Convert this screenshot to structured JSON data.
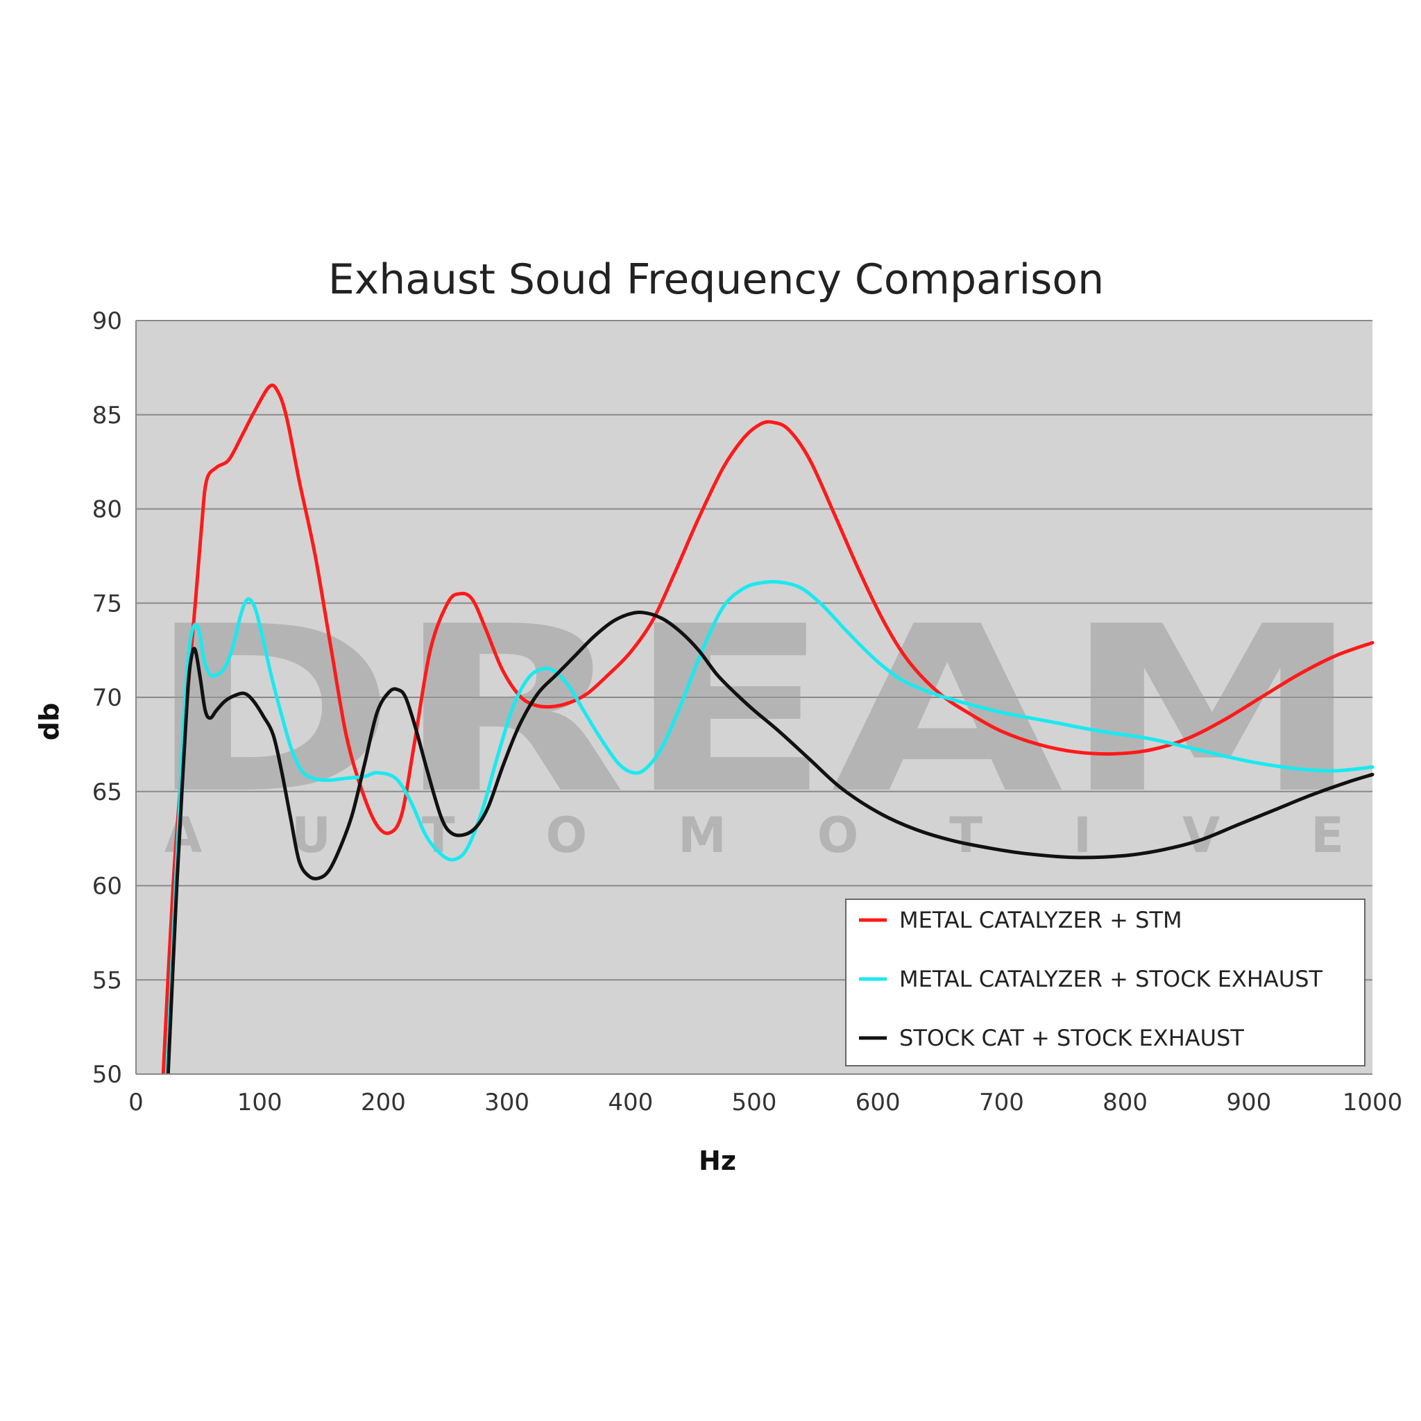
{
  "chart_data": {
    "type": "line",
    "title": "Exhaust Soud Frequency Comparison",
    "xlabel": "Hz",
    "ylabel": "db",
    "xlim": [
      0,
      1000
    ],
    "ylim": [
      50,
      90
    ],
    "x_ticks": [
      0,
      100,
      200,
      300,
      400,
      500,
      600,
      700,
      800,
      900,
      1000
    ],
    "y_ticks": [
      50,
      55,
      60,
      65,
      70,
      75,
      80,
      85,
      90
    ],
    "grid": true,
    "legend_position": "bottom-right",
    "watermark": {
      "main": "DREAM",
      "sub": "AUTOMOTIVE"
    },
    "series": [
      {
        "name": "METAL CATALYZER + STM",
        "color": "#ff1a1a",
        "points": [
          [
            22,
            50
          ],
          [
            30,
            60
          ],
          [
            38,
            67
          ],
          [
            44,
            72
          ],
          [
            48,
            75
          ],
          [
            53,
            79
          ],
          [
            57,
            81.5
          ],
          [
            65,
            82.2
          ],
          [
            75,
            82.6
          ],
          [
            85,
            83.8
          ],
          [
            96,
            85.2
          ],
          [
            108,
            86.5
          ],
          [
            115,
            86.2
          ],
          [
            122,
            84.8
          ],
          [
            132,
            81.5
          ],
          [
            145,
            77.5
          ],
          [
            158,
            72.5
          ],
          [
            170,
            68
          ],
          [
            182,
            65.2
          ],
          [
            194,
            63.3
          ],
          [
            205,
            62.8
          ],
          [
            215,
            63.8
          ],
          [
            225,
            67.5
          ],
          [
            238,
            72.5
          ],
          [
            252,
            75
          ],
          [
            262,
            75.5
          ],
          [
            272,
            75.2
          ],
          [
            283,
            73.6
          ],
          [
            296,
            71.5
          ],
          [
            310,
            70.1
          ],
          [
            322,
            69.6
          ],
          [
            335,
            69.5
          ],
          [
            350,
            69.7
          ],
          [
            365,
            70.2
          ],
          [
            382,
            71.2
          ],
          [
            400,
            72.4
          ],
          [
            418,
            74.1
          ],
          [
            435,
            76.5
          ],
          [
            455,
            79.5
          ],
          [
            475,
            82.2
          ],
          [
            492,
            83.8
          ],
          [
            505,
            84.5
          ],
          [
            515,
            84.6
          ],
          [
            528,
            84.2
          ],
          [
            545,
            82.6
          ],
          [
            565,
            79.7
          ],
          [
            585,
            76.7
          ],
          [
            605,
            74
          ],
          [
            625,
            71.9
          ],
          [
            650,
            70.2
          ],
          [
            675,
            69.1
          ],
          [
            700,
            68.2
          ],
          [
            730,
            67.5
          ],
          [
            760,
            67.1
          ],
          [
            790,
            67
          ],
          [
            820,
            67.2
          ],
          [
            850,
            67.8
          ],
          [
            880,
            68.8
          ],
          [
            910,
            70
          ],
          [
            940,
            71.2
          ],
          [
            970,
            72.2
          ],
          [
            1000,
            72.9
          ]
        ]
      },
      {
        "name": "METAL CATALYZER + STOCK EXHAUST",
        "color": "#18eaf0",
        "points": [
          [
            25,
            50
          ],
          [
            32,
            60
          ],
          [
            38,
            68
          ],
          [
            43,
            72.5
          ],
          [
            47,
            73.8
          ],
          [
            51,
            73.5
          ],
          [
            55,
            72
          ],
          [
            60,
            71.2
          ],
          [
            66,
            71.2
          ],
          [
            72,
            71.6
          ],
          [
            78,
            72.6
          ],
          [
            84,
            74.2
          ],
          [
            88,
            75
          ],
          [
            92,
            75.2
          ],
          [
            97,
            74.6
          ],
          [
            103,
            73
          ],
          [
            110,
            71
          ],
          [
            118,
            69
          ],
          [
            126,
            67.2
          ],
          [
            134,
            66.1
          ],
          [
            143,
            65.7
          ],
          [
            155,
            65.6
          ],
          [
            170,
            65.7
          ],
          [
            185,
            65.8
          ],
          [
            195,
            66
          ],
          [
            210,
            65.7
          ],
          [
            222,
            64.5
          ],
          [
            235,
            62.6
          ],
          [
            248,
            61.6
          ],
          [
            258,
            61.4
          ],
          [
            268,
            62
          ],
          [
            280,
            64
          ],
          [
            293,
            67
          ],
          [
            305,
            69.5
          ],
          [
            317,
            71
          ],
          [
            328,
            71.5
          ],
          [
            338,
            71.4
          ],
          [
            350,
            70.6
          ],
          [
            362,
            69.3
          ],
          [
            375,
            67.9
          ],
          [
            390,
            66.5
          ],
          [
            402,
            66
          ],
          [
            412,
            66.2
          ],
          [
            425,
            67.3
          ],
          [
            440,
            69.5
          ],
          [
            458,
            72.5
          ],
          [
            475,
            74.8
          ],
          [
            492,
            75.8
          ],
          [
            508,
            76.1
          ],
          [
            522,
            76.1
          ],
          [
            538,
            75.8
          ],
          [
            555,
            74.9
          ],
          [
            575,
            73.5
          ],
          [
            598,
            72
          ],
          [
            620,
            70.9
          ],
          [
            645,
            70.2
          ],
          [
            670,
            69.7
          ],
          [
            700,
            69.2
          ],
          [
            740,
            68.7
          ],
          [
            780,
            68.2
          ],
          [
            820,
            67.8
          ],
          [
            860,
            67.2
          ],
          [
            900,
            66.6
          ],
          [
            940,
            66.2
          ],
          [
            970,
            66.1
          ],
          [
            1000,
            66.3
          ]
        ]
      },
      {
        "name": "STOCK CAT + STOCK EXHAUST",
        "color": "#111111",
        "points": [
          [
            26,
            50
          ],
          [
            33,
            60
          ],
          [
            38,
            66
          ],
          [
            42,
            70.5
          ],
          [
            45,
            72.2
          ],
          [
            48,
            72.5
          ],
          [
            52,
            71
          ],
          [
            56,
            69.3
          ],
          [
            60,
            68.9
          ],
          [
            65,
            69.3
          ],
          [
            72,
            69.8
          ],
          [
            80,
            70.1
          ],
          [
            88,
            70.2
          ],
          [
            95,
            69.8
          ],
          [
            103,
            69
          ],
          [
            111,
            68
          ],
          [
            118,
            66
          ],
          [
            125,
            63.6
          ],
          [
            132,
            61.3
          ],
          [
            140,
            60.5
          ],
          [
            148,
            60.4
          ],
          [
            156,
            60.8
          ],
          [
            165,
            62
          ],
          [
            175,
            63.8
          ],
          [
            185,
            66.5
          ],
          [
            195,
            69.2
          ],
          [
            205,
            70.3
          ],
          [
            212,
            70.4
          ],
          [
            218,
            70
          ],
          [
            226,
            68.4
          ],
          [
            236,
            66
          ],
          [
            247,
            63.6
          ],
          [
            255,
            62.8
          ],
          [
            265,
            62.7
          ],
          [
            275,
            63.1
          ],
          [
            285,
            64.2
          ],
          [
            297,
            66.4
          ],
          [
            310,
            68.5
          ],
          [
            325,
            70.2
          ],
          [
            340,
            71.2
          ],
          [
            355,
            72.2
          ],
          [
            370,
            73.2
          ],
          [
            385,
            74
          ],
          [
            398,
            74.4
          ],
          [
            410,
            74.5
          ],
          [
            425,
            74.2
          ],
          [
            440,
            73.5
          ],
          [
            455,
            72.5
          ],
          [
            470,
            71.2
          ],
          [
            485,
            70.2
          ],
          [
            500,
            69.3
          ],
          [
            520,
            68.2
          ],
          [
            545,
            66.7
          ],
          [
            570,
            65.2
          ],
          [
            600,
            63.9
          ],
          [
            630,
            63
          ],
          [
            660,
            62.4
          ],
          [
            690,
            62
          ],
          [
            720,
            61.7
          ],
          [
            760,
            61.5
          ],
          [
            800,
            61.6
          ],
          [
            830,
            61.9
          ],
          [
            860,
            62.4
          ],
          [
            890,
            63.2
          ],
          [
            920,
            64
          ],
          [
            950,
            64.8
          ],
          [
            980,
            65.5
          ],
          [
            1000,
            65.9
          ]
        ]
      }
    ]
  }
}
